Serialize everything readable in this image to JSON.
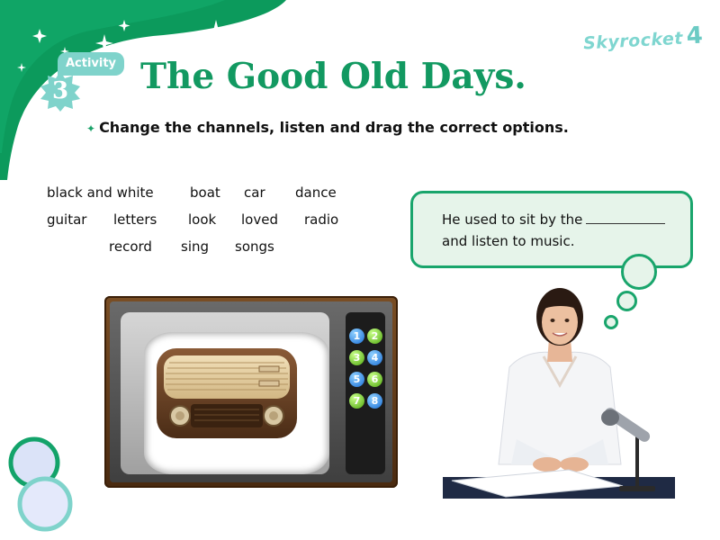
{
  "brand": {
    "name": "Skyrocket",
    "level": "4"
  },
  "activity": {
    "label": "Activity",
    "number": "3"
  },
  "title": "The Good Old Days.",
  "instruction": "Change the channels, listen and drag the correct options.",
  "word_bank": [
    "black and white",
    "boat",
    "car",
    "dance",
    "guitar",
    "letters",
    "look",
    "loved",
    "radio",
    "record",
    "sing",
    "songs"
  ],
  "prompt": {
    "line1": "He used to sit by the",
    "line2": "and listen to music."
  },
  "channels": [
    "1",
    "2",
    "3",
    "4",
    "5",
    "6",
    "7",
    "8"
  ],
  "colors": {
    "accent_green": "#129961",
    "bubble_border": "#19a56c",
    "bubble_fill": "#e6f4ea",
    "tag_teal": "#7fd3cb",
    "channel_blue": "#1a6fd6",
    "channel_green": "#4fa80e"
  }
}
